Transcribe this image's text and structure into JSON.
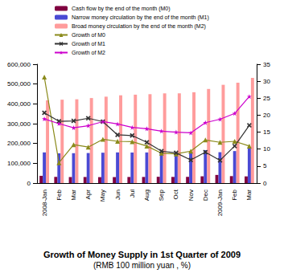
{
  "chart_data": {
    "type": "bar",
    "title": "Growth of Money Supply in 1st Quarter of 2009",
    "subtitle": "(RMB 100 million yuan , %)",
    "categories": [
      "2008-Jan",
      "Feb",
      "Mar",
      "Apr",
      "May",
      "Jun",
      "Jul",
      "Aug",
      "Sep",
      "Oct",
      "Nov",
      "Dec",
      "2009-Jan",
      "Feb",
      "Mar"
    ],
    "series": [
      {
        "name": "Cash flow by the end of the month (M0)",
        "type": "bar",
        "color": "#800040",
        "values": [
          36673,
          31272,
          30433,
          30619,
          30039,
          30181,
          30752,
          30880,
          31724,
          31018,
          31390,
          34219,
          41082,
          35141,
          33747
        ]
      },
      {
        "name": "Narrow money circulation by the end of the month (M1)",
        "type": "bar",
        "color": "#4a4ad4",
        "values": [
          154872,
          150177,
          150867,
          151695,
          153344,
          154820,
          154244,
          154567,
          155748,
          157194,
          157826,
          166217,
          155888,
          161589,
          176490
        ]
      },
      {
        "name": "Broad money circulation by the end of the month (M2)",
        "type": "bar",
        "color": "#ff9c9c",
        "values": [
          417846,
          421037,
          423054,
          429313,
          436222,
          443141,
          446362,
          448846,
          452898,
          453134,
          458644,
          475167,
          496135,
          506708,
          530627
        ]
      },
      {
        "name": "Growth of M0",
        "type": "line",
        "axis": "y2",
        "color": "#8a8a1a",
        "marker": "triangle",
        "values": [
          31.2,
          6.0,
          11.3,
          10.6,
          12.9,
          12.3,
          12.2,
          10.9,
          8.8,
          8.6,
          9.4,
          12.7,
          12.0,
          12.3,
          10.9
        ]
      },
      {
        "name": "Growth of M1",
        "type": "line",
        "axis": "y2",
        "color": "#333333",
        "marker": "x",
        "values": [
          20.7,
          18.2,
          18.3,
          19.1,
          18.1,
          14.2,
          14.0,
          12.0,
          9.4,
          8.9,
          6.8,
          9.1,
          6.7,
          10.9,
          17.0
        ]
      },
      {
        "name": "Growth of M2",
        "type": "line",
        "axis": "y2",
        "color": "#cc00cc",
        "marker": "star",
        "values": [
          18.9,
          17.5,
          16.3,
          16.9,
          18.1,
          17.4,
          16.4,
          16.0,
          15.3,
          15.0,
          14.8,
          17.8,
          18.8,
          20.5,
          25.5
        ]
      }
    ],
    "ylim": [
      0,
      600000
    ],
    "yticks": [
      0,
      100000,
      200000,
      300000,
      400000,
      500000,
      600000
    ],
    "y2lim": [
      0,
      35
    ],
    "y2ticks": [
      0,
      5,
      10,
      15,
      20,
      25,
      30,
      35
    ],
    "grid": false,
    "legend": "top"
  }
}
